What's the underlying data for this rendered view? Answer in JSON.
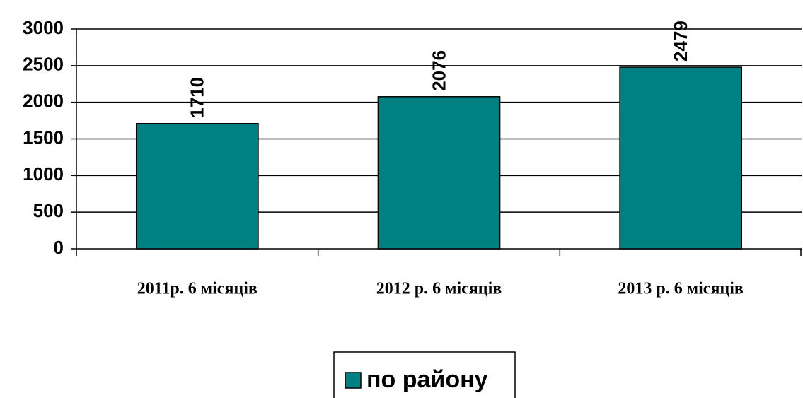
{
  "chart_data": {
    "type": "bar",
    "categories": [
      "2011р. 6 місяців",
      "2012 р. 6 місяців",
      "2013 р. 6 місяців"
    ],
    "series": [
      {
        "name": "по району",
        "color": "#008080",
        "values": [
          1710,
          2076,
          2479
        ]
      }
    ],
    "ylim": [
      0,
      3000
    ],
    "yticks": [
      0,
      500,
      1000,
      1500,
      2000,
      2500,
      3000
    ],
    "grid": true
  }
}
